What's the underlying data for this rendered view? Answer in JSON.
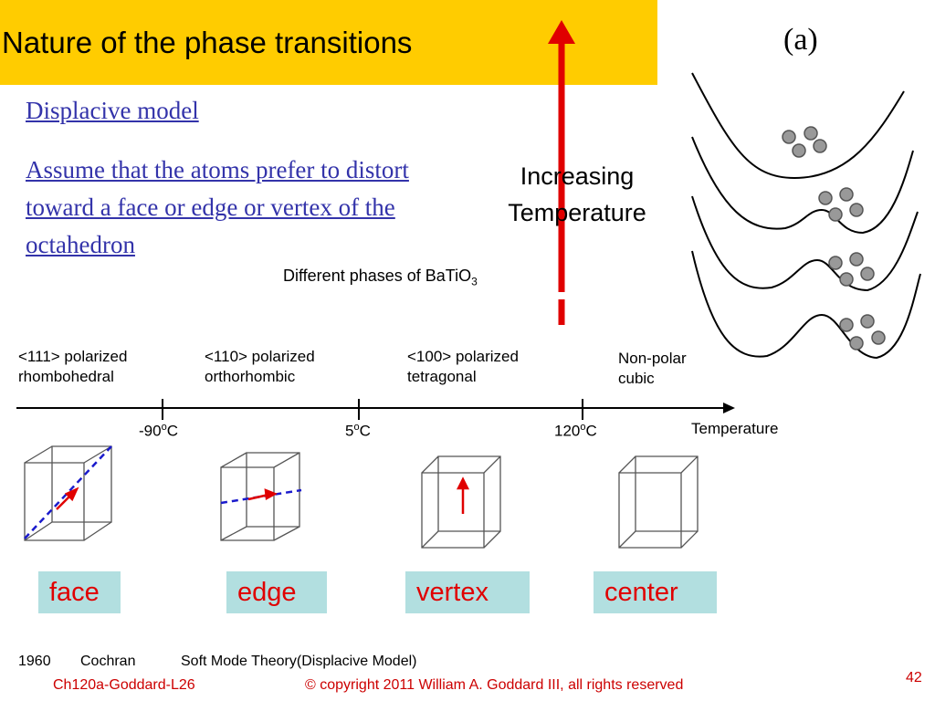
{
  "header": {
    "title": "Nature of the phase transitions"
  },
  "body": {
    "heading": "Displacive model",
    "text": "Assume that the atoms prefer to distort toward a face or edge or vertex of the octahedron"
  },
  "arrow": {
    "line1": "Increasing",
    "line2": "Temperature"
  },
  "caption": {
    "text": "Different phases of BaTiO",
    "sub": "3"
  },
  "figure": {
    "label": "(a)"
  },
  "phases": [
    {
      "line1": "<111> polarized",
      "line2": "rhombohedral"
    },
    {
      "line1": "<110> polarized",
      "line2": "orthorhombic"
    },
    {
      "line1": "<100> polarized",
      "line2": "tetragonal"
    },
    {
      "line1": "Non-polar",
      "line2": "cubic"
    }
  ],
  "temperatures": [
    {
      "value": "-90",
      "sup": "o",
      "unit": "C"
    },
    {
      "value": "5",
      "sup": "o",
      "unit": "C"
    },
    {
      "value": "120",
      "sup": "o",
      "unit": "C"
    }
  ],
  "axis_label": "Temperature",
  "distortions": [
    "face",
    "edge",
    "vertex",
    "center"
  ],
  "reference": {
    "year": "1960",
    "author": "Cochran",
    "theory": "Soft Mode Theory(Displacive Model)"
  },
  "footer": {
    "course": "Ch120a-Goddard-L26",
    "copyright": "© copyright 2011 William A. Goddard III, all rights reserved",
    "page": "42"
  }
}
